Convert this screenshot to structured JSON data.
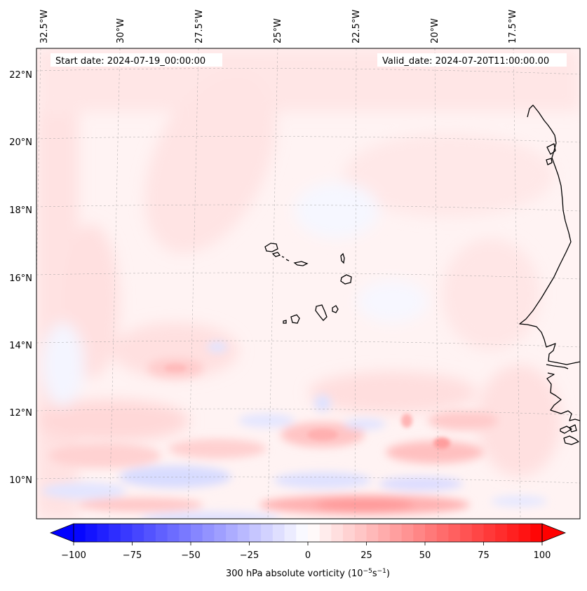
{
  "header": {
    "start_label": "Start date: 2024-07-19_00:00:00",
    "valid_label": "Valid_date: 2024-07-20T11:00:00.00"
  },
  "axes": {
    "lon_ticks": [
      "32.5°W",
      "30°W",
      "27.5°W",
      "25°W",
      "22.5°W",
      "20°W",
      "17.5°W"
    ],
    "lat_ticks": [
      "22°N",
      "20°N",
      "18°N",
      "16°N",
      "14°N",
      "12°N",
      "10°N"
    ]
  },
  "colorbar": {
    "label": "300 hPa absolute vorticity (10",
    "label_exp1": "−5",
    "label_mid": "s",
    "label_exp2": "−1",
    "label_end": ")",
    "ticks": [
      "−100",
      "−75",
      "−50",
      "−25",
      "0",
      "25",
      "50",
      "75",
      "100"
    ],
    "vmin": -100,
    "vmax": 100,
    "levels": 40,
    "colormap": "bwr",
    "extend": "both"
  },
  "map": {
    "projection": "Lambert Conformal",
    "gridlines": true,
    "coastline_color": "#000000",
    "islands": "Cape Verde",
    "coast": "West Africa (Mauritania, Senegal, Gambia, Guinea-Bissau)"
  }
}
